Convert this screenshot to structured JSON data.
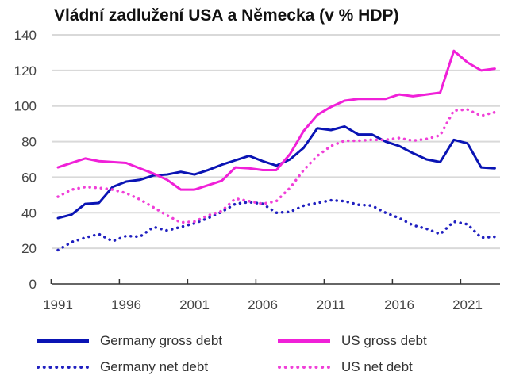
{
  "chart_data": {
    "type": "line",
    "title": "Vládní zadlužení USA a Německa (v % HDP)",
    "xlabel": "",
    "ylabel": "",
    "ylim": [
      0,
      140
    ],
    "yticks": [
      "0",
      "20",
      "40",
      "60",
      "80",
      "100",
      "120",
      "140"
    ],
    "xticks": [
      "1991",
      "1996",
      "2001",
      "2006",
      "2011",
      "2016",
      "2021"
    ],
    "x": [
      1991,
      1992,
      1993,
      1994,
      1995,
      1996,
      1997,
      1998,
      1999,
      2000,
      2001,
      2002,
      2003,
      2004,
      2005,
      2006,
      2007,
      2008,
      2009,
      2010,
      2011,
      2012,
      2013,
      2014,
      2015,
      2016,
      2017,
      2018,
      2019,
      2020,
      2021,
      2022,
      2023
    ],
    "grid": true,
    "legend": "bottom",
    "series": [
      {
        "name": "Germany gross debt",
        "color": "#0a14b4",
        "style": "solid",
        "values": [
          37,
          39,
          45,
          45.5,
          54.5,
          57.5,
          58.5,
          61,
          61.5,
          63,
          61.5,
          64,
          67,
          69.5,
          72,
          69,
          66.5,
          70,
          76.5,
          87.5,
          86.5,
          88.5,
          84,
          84,
          80,
          77.5,
          73.5,
          70,
          68.5,
          81,
          79,
          65.5,
          65
        ]
      },
      {
        "name": "US gross debt",
        "color": "#f020d8",
        "style": "solid",
        "values": [
          65.5,
          68,
          70.5,
          69,
          68.5,
          68,
          65,
          62,
          58.5,
          53,
          53,
          55.5,
          58,
          65.5,
          65,
          64,
          64,
          73,
          86,
          95,
          99.5,
          103,
          104,
          104,
          104,
          106.5,
          105.5,
          106.5,
          107.5,
          131,
          124.5,
          120,
          121
        ]
      },
      {
        "name": "Germany net debt",
        "color": "#2020c0",
        "style": "dotted",
        "values": [
          19,
          23.5,
          26,
          28,
          24,
          27,
          26.5,
          32,
          30,
          32,
          34,
          37,
          40.5,
          45,
          46,
          45,
          40,
          40.5,
          44,
          45.5,
          47,
          46.5,
          44.5,
          44,
          40,
          37,
          33,
          31,
          28,
          35,
          33.5,
          26,
          26.5
        ]
      },
      {
        "name": "US net debt",
        "color": "#f040d8",
        "style": "dotted",
        "values": [
          49,
          53,
          54.5,
          54,
          53,
          51,
          47.5,
          43,
          38.5,
          34.5,
          35,
          38.5,
          41,
          48,
          46.5,
          45,
          46.5,
          54,
          64,
          72,
          77.5,
          80.5,
          80.5,
          81,
          81,
          82,
          80.5,
          81.5,
          83.5,
          97.5,
          98,
          94.5,
          96.5
        ]
      }
    ]
  }
}
